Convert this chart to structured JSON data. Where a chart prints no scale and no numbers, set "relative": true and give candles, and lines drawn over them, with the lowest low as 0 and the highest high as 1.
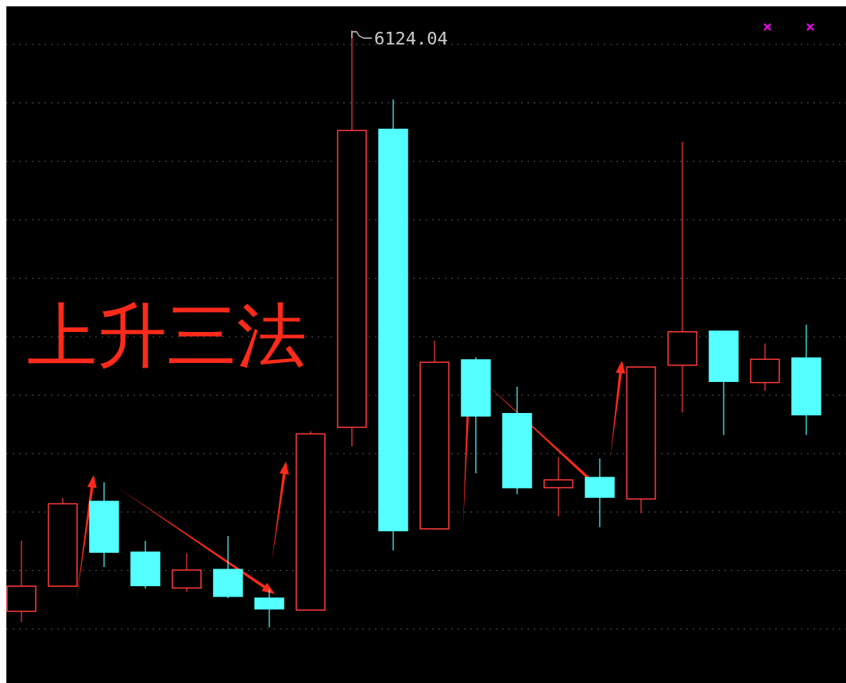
{
  "chart_data": {
    "type": "candlestick",
    "relative": true,
    "grid": true,
    "annotations": [
      "上升三法",
      "6124.04"
    ],
    "categories": [
      null,
      null,
      null,
      null,
      null,
      null,
      null,
      null,
      null,
      null,
      null,
      null,
      null,
      null,
      null,
      null,
      null,
      null,
      null,
      null
    ],
    "colors": [
      "#ff3b3b",
      "#ff3b3b",
      "#54ffff",
      "#54ffff",
      "#ff3b3b",
      "#54ffff",
      "#54ffff",
      "#ff3b3b",
      "#ff3b3b",
      "#54ffff",
      "#ff3b3b",
      "#54ffff",
      "#54ffff",
      "#ff3b3b",
      "#54ffff",
      "#ff3b3b",
      "#ff3b3b",
      "#54ffff",
      "#ff3b3b",
      "#54ffff"
    ],
    "ohlc": [
      [
        0.027,
        0.145,
        0.009,
        0.069
      ],
      [
        0.069,
        0.217,
        0.069,
        0.207
      ],
      [
        0.211,
        0.243,
        0.101,
        0.126
      ],
      [
        0.126,
        0.145,
        0.065,
        0.07
      ],
      [
        0.066,
        0.124,
        0.06,
        0.096
      ],
      [
        0.097,
        0.153,
        0.049,
        0.052
      ],
      [
        0.049,
        0.063,
        0,
        0.031
      ],
      [
        0.029,
        0.328,
        0.029,
        0.324
      ],
      [
        0.335,
        1,
        0.303,
        0.832
      ],
      [
        0.834,
        0.884,
        0.129,
        0.162
      ],
      [
        0.165,
        0.48,
        0.165,
        0.444
      ],
      [
        0.448,
        0.452,
        0.258,
        0.354
      ],
      [
        0.358,
        0.403,
        0.223,
        0.234
      ],
      [
        0.234,
        0.285,
        0.186,
        0.247
      ],
      [
        0.251,
        0.283,
        0.168,
        0.218
      ],
      [
        0.215,
        0.436,
        0.191,
        0.436
      ],
      [
        0.439,
        0.813,
        0.36,
        0.495
      ],
      [
        0.496,
        0.496,
        0.322,
        0.412
      ],
      [
        0.41,
        0.475,
        0.396,
        0.449
      ],
      [
        0.451,
        0.507,
        0.322,
        0.356
      ]
    ]
  }
}
